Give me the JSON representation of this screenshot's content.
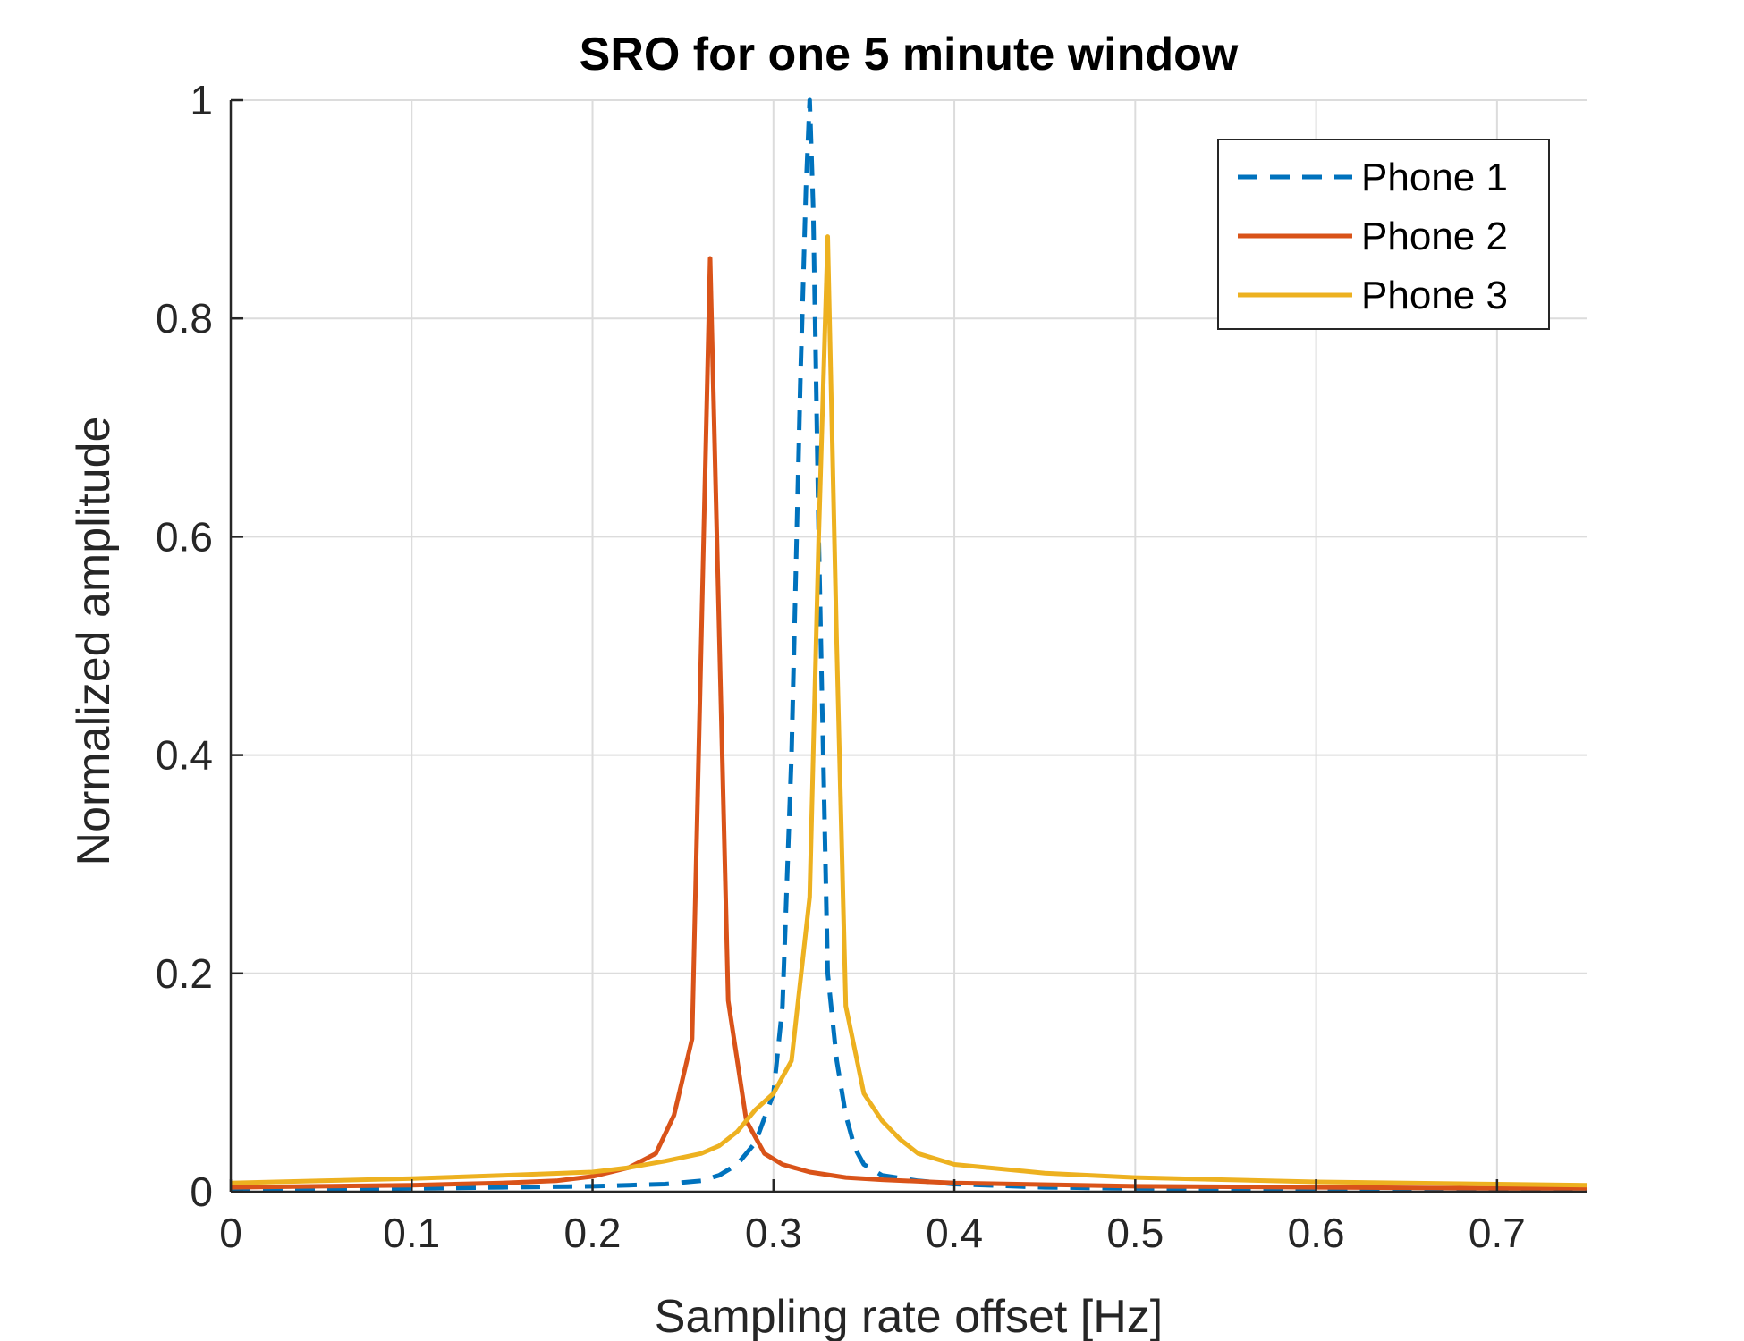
{
  "chart_data": {
    "type": "line",
    "title": "SRO for one 5 minute window",
    "xlabel": "Sampling rate offset [Hz]",
    "ylabel": "Normalized amplitude",
    "xlim": [
      0,
      0.75
    ],
    "ylim": [
      0,
      1
    ],
    "xticks": [
      0,
      0.1,
      0.2,
      0.3,
      0.4,
      0.5,
      0.6,
      0.7
    ],
    "xtick_labels": [
      "0",
      "0.1",
      "0.2",
      "0.3",
      "0.4",
      "0.5",
      "0.6",
      "0.7"
    ],
    "yticks": [
      0,
      0.2,
      0.4,
      0.6,
      0.8,
      1
    ],
    "ytick_labels": [
      "0",
      "0.2",
      "0.4",
      "0.6",
      "0.8",
      "1"
    ],
    "grid": true,
    "legend_position": "top-right",
    "series": [
      {
        "name": "Phone 1",
        "color": "#0072BD",
        "style": "dashed",
        "x": [
          0,
          0.05,
          0.1,
          0.15,
          0.2,
          0.22,
          0.24,
          0.26,
          0.27,
          0.28,
          0.29,
          0.3,
          0.305,
          0.31,
          0.315,
          0.318,
          0.32,
          0.322,
          0.325,
          0.33,
          0.335,
          0.34,
          0.345,
          0.35,
          0.36,
          0.38,
          0.4,
          0.45,
          0.5,
          0.6,
          0.7,
          0.75
        ],
        "y": [
          0.001,
          0.002,
          0.003,
          0.004,
          0.005,
          0.006,
          0.007,
          0.01,
          0.015,
          0.025,
          0.045,
          0.09,
          0.17,
          0.4,
          0.75,
          0.92,
          1.0,
          0.9,
          0.6,
          0.2,
          0.12,
          0.07,
          0.04,
          0.025,
          0.015,
          0.01,
          0.007,
          0.004,
          0.003,
          0.002,
          0.001,
          0.001
        ]
      },
      {
        "name": "Phone 2",
        "color": "#D95319",
        "style": "solid",
        "x": [
          0,
          0.05,
          0.1,
          0.15,
          0.18,
          0.2,
          0.22,
          0.235,
          0.245,
          0.255,
          0.265,
          0.275,
          0.285,
          0.295,
          0.305,
          0.32,
          0.34,
          0.36,
          0.4,
          0.5,
          0.6,
          0.7,
          0.75
        ],
        "y": [
          0.004,
          0.005,
          0.006,
          0.008,
          0.01,
          0.014,
          0.022,
          0.035,
          0.07,
          0.14,
          0.855,
          0.175,
          0.065,
          0.035,
          0.025,
          0.018,
          0.013,
          0.011,
          0.008,
          0.005,
          0.004,
          0.003,
          0.003
        ]
      },
      {
        "name": "Phone 3",
        "color": "#EDB120",
        "style": "solid",
        "x": [
          0,
          0.05,
          0.1,
          0.15,
          0.2,
          0.22,
          0.24,
          0.26,
          0.27,
          0.28,
          0.29,
          0.3,
          0.31,
          0.32,
          0.325,
          0.33,
          0.335,
          0.34,
          0.35,
          0.36,
          0.37,
          0.38,
          0.4,
          0.45,
          0.5,
          0.55,
          0.6,
          0.7,
          0.75
        ],
        "y": [
          0.008,
          0.01,
          0.012,
          0.015,
          0.018,
          0.022,
          0.028,
          0.035,
          0.042,
          0.055,
          0.075,
          0.09,
          0.12,
          0.27,
          0.6,
          0.875,
          0.5,
          0.17,
          0.09,
          0.065,
          0.048,
          0.035,
          0.025,
          0.017,
          0.013,
          0.011,
          0.009,
          0.007,
          0.006
        ]
      }
    ]
  }
}
